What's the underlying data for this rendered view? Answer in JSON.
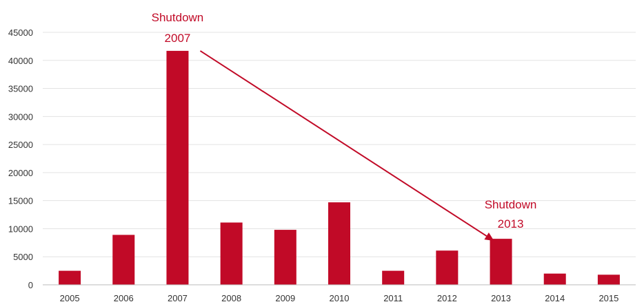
{
  "chart_data": {
    "type": "bar",
    "categories": [
      "2005",
      "2006",
      "2007",
      "2008",
      "2009",
      "2010",
      "2011",
      "2012",
      "2013",
      "2014",
      "2015"
    ],
    "values": [
      2500,
      8900,
      41700,
      11100,
      9800,
      14700,
      2500,
      6100,
      8200,
      2000,
      1800
    ],
    "ylim": [
      0,
      45000
    ],
    "yticks": [
      0,
      5000,
      10000,
      15000,
      20000,
      25000,
      30000,
      35000,
      40000,
      45000
    ],
    "ytick_labels": [
      "0",
      "5000",
      "10000",
      "15000",
      "20000",
      "25000",
      "30000",
      "35000",
      "40000",
      "45000"
    ],
    "grid": true,
    "bar_color": "#c10a27",
    "grid_color": "#e3e3e3",
    "annotations": [
      {
        "category": "2007",
        "line1": "Shutdown",
        "line2": "2007"
      },
      {
        "category": "2013",
        "line1": "Shutdown",
        "line2": "2013"
      }
    ],
    "arrow": {
      "from_category": "2007",
      "to_category": "2013"
    }
  }
}
